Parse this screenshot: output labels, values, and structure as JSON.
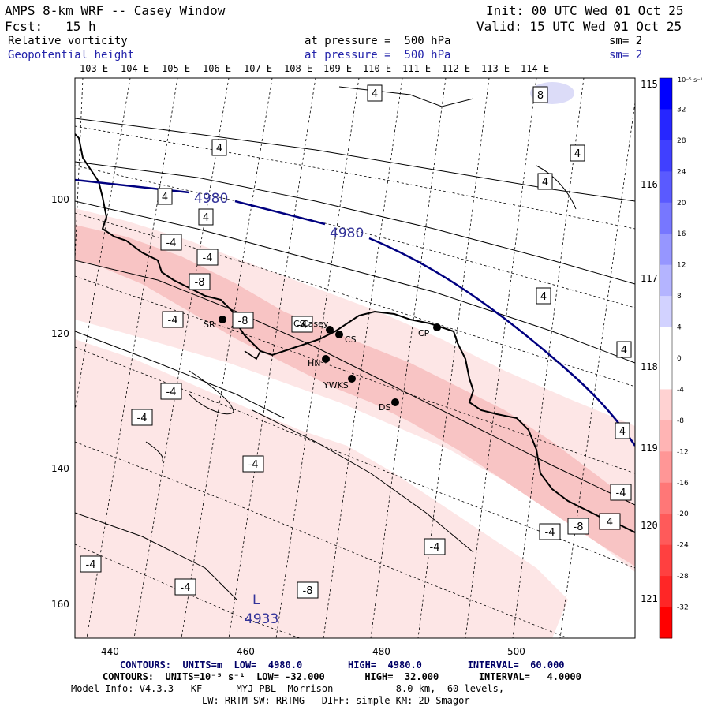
{
  "header": {
    "title": "AMPS 8-km WRF -- Casey Window",
    "forecast": "Fcst:   15 h",
    "init": "Init: 00 UTC Wed 01 Oct 25",
    "valid": "Valid: 15 UTC Wed 01 Oct 25",
    "field1": "Relative vorticity",
    "field1_level": "at pressure =  500 hPa",
    "field1_sm": "sm= 2",
    "field2": "Geopotential height",
    "field2_level": "at pressure =  500 hPa",
    "field2_sm": "sm= 2"
  },
  "map": {
    "top_lon_labels": [
      "103 E",
      "104 E",
      "105 E",
      "106 E",
      "107 E",
      "108 E",
      "109 E",
      "110 E",
      "111 E",
      "112 E",
      "113 E",
      "114 E"
    ],
    "right_lon_labels": [
      "115 E",
      "116 E",
      "117 E",
      "118 E",
      "119 E",
      "120 E",
      "121 E"
    ],
    "x_ticks": [
      "440",
      "460",
      "480",
      "500"
    ],
    "y_ticks": [
      "100",
      "120",
      "140",
      "160"
    ],
    "stations": [
      {
        "id": "SR",
        "label": "SR"
      },
      {
        "id": "CS_top",
        "label": "CS"
      },
      {
        "id": "Casey",
        "label": "Casey"
      },
      {
        "id": "CS",
        "label": "CS"
      },
      {
        "id": "HN",
        "label": "HN"
      },
      {
        "id": "YWKS",
        "label": "YWKS"
      },
      {
        "id": "DS",
        "label": "DS"
      },
      {
        "id": "CP",
        "label": "CP"
      }
    ],
    "height_labels": [
      "4980",
      "4980",
      "4933"
    ],
    "low_marker": "L",
    "vorticity_labels": [
      "4",
      "4",
      "4",
      "4",
      "4",
      "4",
      "4",
      "4",
      "8",
      "-4",
      "-4",
      "-8",
      "-8",
      "-4",
      "-4",
      "-4",
      "-4",
      "-4",
      "-4",
      "-4",
      "-4",
      "-4",
      "-4",
      "-8",
      "-8",
      "4"
    ]
  },
  "colorbar": {
    "unit": "10⁻⁵ s⁻¹",
    "ticks": [
      "32",
      "28",
      "24",
      "20",
      "16",
      "12",
      "8",
      "4",
      "0",
      "-4",
      "-8",
      "-12",
      "-16",
      "-20",
      "-24",
      "-28",
      "-32"
    ],
    "colors": [
      "#0000ff",
      "#2626ff",
      "#4040ff",
      "#5a5aff",
      "#7777ff",
      "#9696ff",
      "#b4b4ff",
      "#d2d2ff",
      "#ffffff",
      "#ffffff",
      "#ffd2d2",
      "#ffb4b4",
      "#ff9696",
      "#ff7777",
      "#ff5a5a",
      "#ff4040",
      "#ff2626",
      "#ff0000"
    ]
  },
  "footer": {
    "contours1": "CONTOURS:  UNITS=m  LOW=  4980.0        HIGH=  4980.0        INTERVAL=  60.000",
    "contours2": "CONTOURS:  UNITS=10⁻⁵ s⁻¹  LOW= -32.000       HIGH=  32.000       INTERVAL=   4.0000",
    "model_info": "Model Info: V4.3.3   KF      MYJ PBL  Morrison           8.0 km,  60 levels,",
    "model_info2": "LW: RRTM SW: RRTMG   DIFF: simple KM: 2D Smagor"
  }
}
